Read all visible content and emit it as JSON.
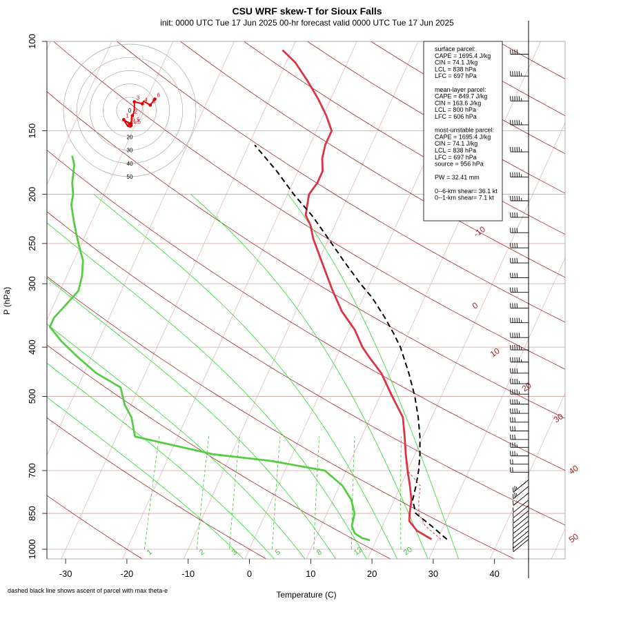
{
  "chart_data": {
    "type": "line",
    "title": "CSU WRF skew-T for Sioux Falls",
    "subtitle": "init: 0000 UTC Tue 17 Jun 2025     00-hr forecast valid 0000 UTC Tue 17 Jun 2025",
    "xlabel": "Temperature (C)",
    "ylabel": "P (hPa)",
    "footnote": "dashed black line shows ascent of parcel with max theta-e",
    "x_ticks": [
      -30,
      -20,
      -10,
      0,
      10,
      20,
      30,
      40
    ],
    "y_ticks": [
      100,
      150,
      200,
      250,
      300,
      400,
      500,
      700,
      850,
      1000
    ],
    "xlim": [
      -33,
      46
    ],
    "ylim": [
      1050,
      100
    ],
    "y_scale": "log",
    "isotherm_labels": [
      "-10",
      "0",
      "10",
      "20",
      "30",
      "40",
      "50"
    ],
    "mixing_ratio_labels": [
      "1",
      "2",
      "3",
      "5",
      "8",
      "12",
      "20"
    ],
    "series": [
      {
        "name": "temperature",
        "color": "#dd3344",
        "points": [
          [
            29.0,
            956
          ],
          [
            26.0,
            920
          ],
          [
            24.0,
            880
          ],
          [
            23.5,
            850
          ],
          [
            22.8,
            800
          ],
          [
            21.5,
            750
          ],
          [
            20.0,
            700
          ],
          [
            18.5,
            650
          ],
          [
            17.0,
            600
          ],
          [
            15.3,
            550
          ],
          [
            12.0,
            500
          ],
          [
            8.5,
            450
          ],
          [
            5.5,
            420
          ],
          [
            3.5,
            400
          ],
          [
            1.0,
            370
          ],
          [
            -2.5,
            340
          ],
          [
            -5.5,
            310
          ],
          [
            -8.0,
            285
          ],
          [
            -10.5,
            262
          ],
          [
            -12.5,
            245
          ],
          [
            -14.0,
            230
          ],
          [
            -15.5,
            220
          ],
          [
            -16.0,
            210
          ],
          [
            -16.5,
            200
          ],
          [
            -16.0,
            190
          ],
          [
            -16.0,
            180
          ],
          [
            -17.0,
            170
          ],
          [
            -17.5,
            160
          ],
          [
            -17.5,
            150
          ],
          [
            -19.5,
            140
          ],
          [
            -22.0,
            130
          ],
          [
            -25.0,
            120
          ],
          [
            -28.5,
            110
          ],
          [
            -31.5,
            104
          ]
        ]
      },
      {
        "name": "dewpoint",
        "color": "#55cc44",
        "points": [
          [
            19.0,
            960
          ],
          [
            17.5,
            950
          ],
          [
            16.0,
            930
          ],
          [
            15.0,
            900
          ],
          [
            14.5,
            850
          ],
          [
            13.0,
            800
          ],
          [
            10.5,
            750
          ],
          [
            6.5,
            700
          ],
          [
            -3.0,
            670
          ],
          [
            -13.0,
            650
          ],
          [
            -27.0,
            600
          ],
          [
            -29.0,
            550
          ],
          [
            -31.0,
            520
          ],
          [
            -33.0,
            480
          ],
          [
            -38.0,
            450
          ],
          [
            -42.0,
            420
          ],
          [
            -46.0,
            390
          ],
          [
            -49.0,
            365
          ],
          [
            -49.0,
            350
          ],
          [
            -48.0,
            330
          ],
          [
            -47.0,
            310
          ],
          [
            -47.5,
            290
          ],
          [
            -48.5,
            270
          ],
          [
            -50.0,
            255
          ],
          [
            -51.5,
            240
          ],
          [
            -53.0,
            225
          ],
          [
            -54.5,
            210
          ],
          [
            -55.0,
            200
          ],
          [
            -56.0,
            190
          ],
          [
            -57.0,
            175
          ],
          [
            -58.0,
            168
          ]
        ]
      },
      {
        "name": "parcel",
        "color": "#000000",
        "dash": "8,5",
        "points": [
          [
            31.5,
            956
          ],
          [
            28.0,
            900
          ],
          [
            24.5,
            850
          ],
          [
            23.0,
            800
          ],
          [
            22.5,
            750
          ],
          [
            21.8,
            700
          ],
          [
            20.8,
            650
          ],
          [
            19.5,
            600
          ],
          [
            17.8,
            550
          ],
          [
            15.7,
            500
          ],
          [
            13.0,
            450
          ],
          [
            9.7,
            400
          ],
          [
            7.5,
            375
          ],
          [
            5.0,
            350
          ],
          [
            1.5,
            320
          ],
          [
            -1.5,
            300
          ],
          [
            -6.0,
            270
          ],
          [
            -10.0,
            245
          ],
          [
            -14.5,
            220
          ],
          [
            -19.0,
            200
          ],
          [
            -23.5,
            180
          ],
          [
            -29.0,
            160
          ]
        ]
      },
      {
        "name": "virtual-temperature",
        "color": "#dd3344",
        "dash": "3,3",
        "points": [
          [
            30.5,
            956
          ],
          [
            27.0,
            900
          ],
          [
            25.0,
            850
          ],
          [
            24.0,
            800
          ],
          [
            23.2,
            750
          ],
          [
            20.0,
            700
          ]
        ]
      }
    ],
    "info_box": [
      "surface parcel:",
      "CAPE = 1695.4 J/kg",
      "CIN = 74.1 J/kg",
      "LCL = 838 hPa",
      "LFC = 697 hPa",
      "",
      "mean-layer parcel:",
      "CAPE = 849.7 J/kg",
      "CIN = 163.6 J/kg",
      "LCL = 800 hPa",
      "LFC = 606 hPa",
      "",
      "most-unstable parcel:",
      "CAPE = 1695.4 J/kg",
      "CIN = 74.1 J/kg",
      "LCL = 838 hPa",
      "LFC = 697 hPa",
      "source = 956 hPa",
      "",
      "PW =  32.41 mm",
      "",
      "0--6-km shear= 36.1 kt",
      "0--1-km shear= 7.1 kt"
    ],
    "hodograph": {
      "ring_labels": [
        "0",
        "10",
        "20",
        "30",
        "40",
        "50"
      ],
      "rings": [
        0,
        10,
        20,
        30,
        40,
        50
      ],
      "points": [
        {
          "label": "0.5",
          "u": 0.2,
          "v": -10.2
        },
        {
          "label": "1",
          "u": -4.5,
          "v": -7.0
        },
        {
          "label": "1.5",
          "u": 1.0,
          "v": -11.5
        },
        {
          "label": "2",
          "u": 2.0,
          "v": -4.0
        },
        {
          "label": "3",
          "u": 3.5,
          "v": 6.5
        },
        {
          "label": "4",
          "u": 9.5,
          "v": 5.0
        },
        {
          "label": "5",
          "u": 15.5,
          "v": 4.0
        },
        {
          "label": "6",
          "u": 19.0,
          "v": 8.5
        }
      ],
      "trace": [
        [
          0.2,
          -10.2
        ],
        [
          -4.5,
          -7.0
        ],
        [
          -1.5,
          -12.0
        ],
        [
          0.5,
          -12.5
        ],
        [
          1.0,
          -11.5
        ],
        [
          1.2,
          -8.5
        ],
        [
          1.5,
          -4.5
        ],
        [
          3.0,
          -2.0
        ],
        [
          3.5,
          1.0
        ],
        [
          3.5,
          6.5
        ],
        [
          9.5,
          5.0
        ],
        [
          10.5,
          7.0
        ],
        [
          15.5,
          4.0
        ],
        [
          19.0,
          8.5
        ]
      ]
    },
    "wind_barbs": [
      {
        "p": 106,
        "kt": 40
      },
      {
        "p": 117,
        "kt": 45
      },
      {
        "p": 131,
        "kt": 45
      },
      {
        "p": 146,
        "kt": 45
      },
      {
        "p": 165,
        "kt": 45
      },
      {
        "p": 185,
        "kt": 45
      },
      {
        "p": 206,
        "kt": 45
      },
      {
        "p": 222,
        "kt": 40
      },
      {
        "p": 238,
        "kt": 40
      },
      {
        "p": 255,
        "kt": 40
      },
      {
        "p": 273,
        "kt": 40
      },
      {
        "p": 292,
        "kt": 40
      },
      {
        "p": 312,
        "kt": 40
      },
      {
        "p": 335,
        "kt": 40
      },
      {
        "p": 358,
        "kt": 45
      },
      {
        "p": 383,
        "kt": 50
      },
      {
        "p": 405,
        "kt": 45
      },
      {
        "p": 428,
        "kt": 45
      },
      {
        "p": 450,
        "kt": 40
      },
      {
        "p": 472,
        "kt": 35
      },
      {
        "p": 495,
        "kt": 35
      },
      {
        "p": 518,
        "kt": 35
      },
      {
        "p": 540,
        "kt": 35
      },
      {
        "p": 562,
        "kt": 30
      },
      {
        "p": 585,
        "kt": 30
      },
      {
        "p": 608,
        "kt": 30
      },
      {
        "p": 630,
        "kt": 25
      },
      {
        "p": 655,
        "kt": 25
      },
      {
        "p": 680,
        "kt": 20
      },
      {
        "p": 705,
        "kt": 20
      },
      {
        "p": 730,
        "kt": 15
      },
      {
        "p": 752,
        "kt": 15
      },
      {
        "p": 775,
        "kt": 10
      },
      {
        "p": 800,
        "kt": 10
      },
      {
        "p": 820,
        "kt": 10
      },
      {
        "p": 840,
        "kt": 10
      },
      {
        "p": 860,
        "kt": 10
      },
      {
        "p": 880,
        "kt": 10
      },
      {
        "p": 900,
        "kt": 10
      },
      {
        "p": 920,
        "kt": 10
      },
      {
        "p": 940,
        "kt": 10
      },
      {
        "p": 956,
        "kt": 10
      }
    ]
  }
}
